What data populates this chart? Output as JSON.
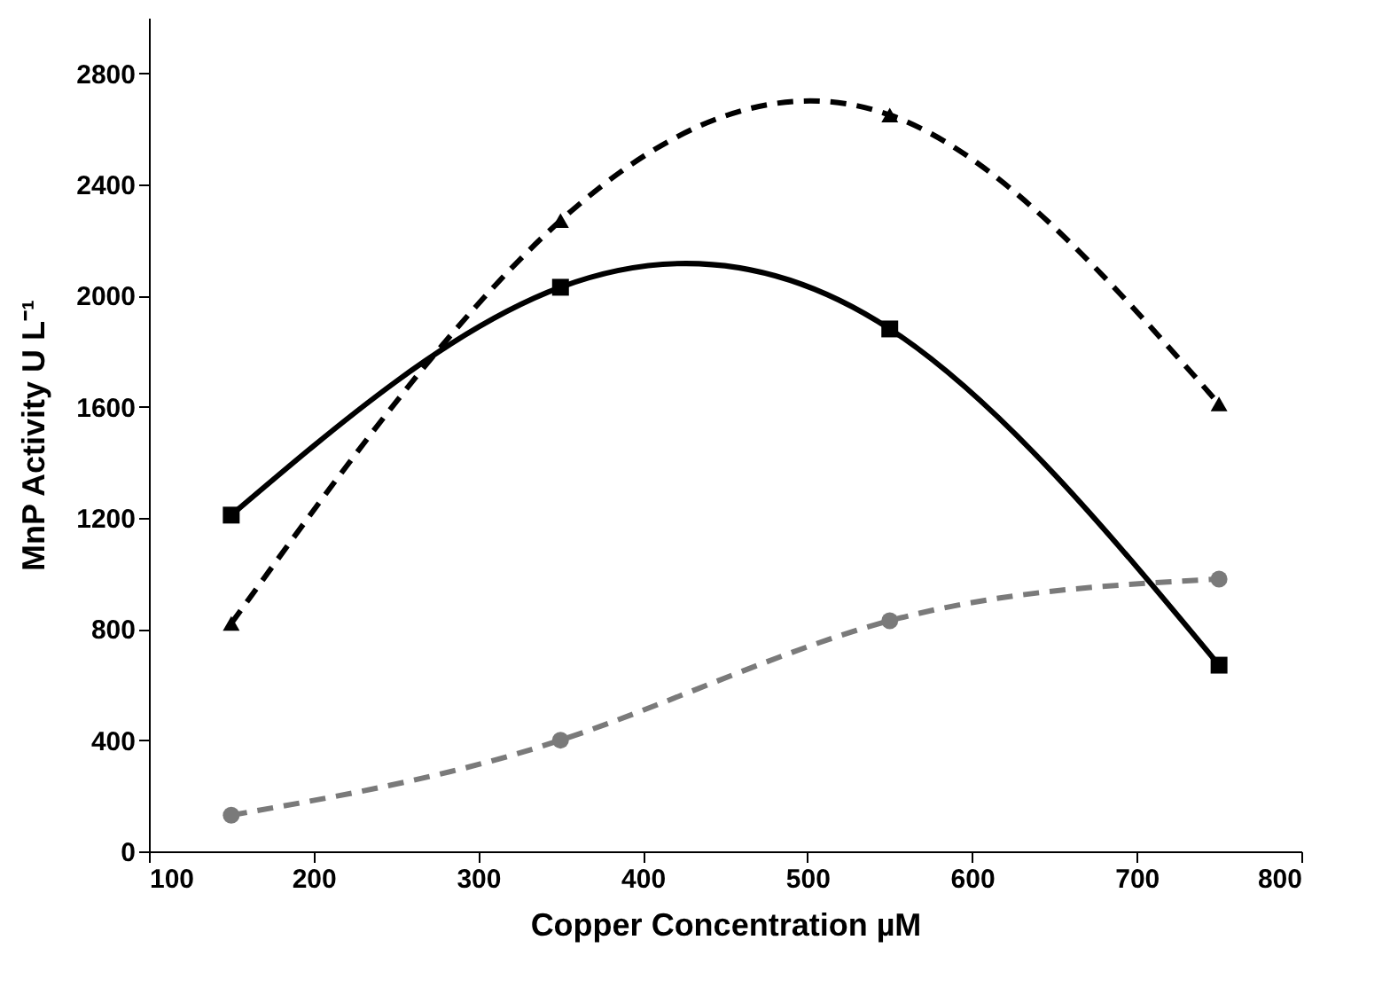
{
  "chart_data": {
    "type": "line",
    "xlabel": "Copper Concentration µM",
    "ylabel": "MnP Activity U L⁻¹",
    "x": [
      150,
      350,
      550,
      750
    ],
    "series": [
      {
        "color": "#000000",
        "values": [
          1210,
          2030,
          1880,
          670
        ],
        "marker": "square",
        "line_style": "solid"
      },
      {
        "color": "#000000",
        "values": [
          820,
          2270,
          2650,
          1610
        ],
        "marker": "triangle",
        "line_style": "dashed"
      },
      {
        "color": "#7a7a7a",
        "values": [
          130,
          400,
          830,
          980
        ],
        "marker": "circle",
        "line_style": "dashed"
      }
    ],
    "xlim": [
      100,
      800
    ],
    "xticks": [
      100,
      200,
      300,
      400,
      500,
      600,
      700,
      800
    ],
    "ylim": [
      0,
      3000
    ],
    "yticks": [
      0,
      400,
      800,
      1200,
      1600,
      2000,
      2400,
      2800
    ],
    "grid": false
  }
}
